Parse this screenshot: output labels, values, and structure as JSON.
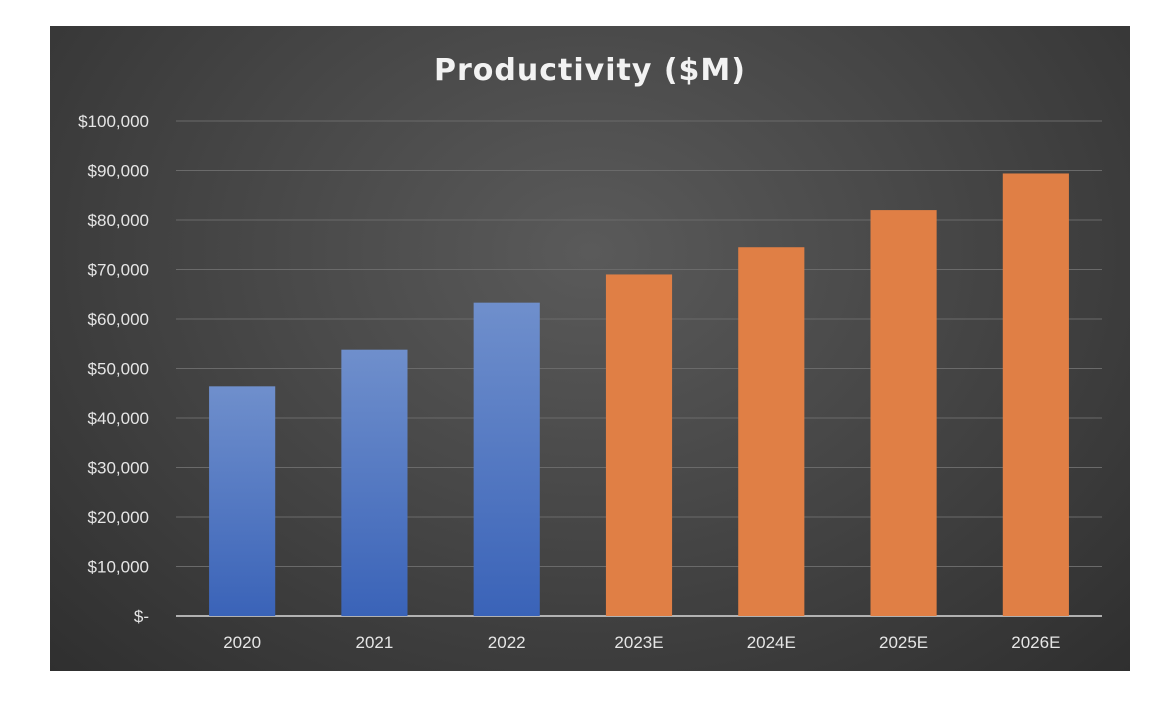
{
  "chart_data": {
    "type": "bar",
    "title": "Productivity ($M)",
    "xlabel": "",
    "ylabel": "",
    "categories": [
      "2020",
      "2021",
      "2022",
      "2023E",
      "2024E",
      "2025E",
      "2026E"
    ],
    "values": [
      46400,
      53800,
      63300,
      69000,
      74500,
      82000,
      89400
    ],
    "ylim": [
      0,
      100000
    ],
    "yticks": [
      0,
      10000,
      20000,
      30000,
      40000,
      50000,
      60000,
      70000,
      80000,
      90000,
      100000
    ],
    "ytick_labels": [
      "$-",
      "$10,000",
      "$20,000",
      "$30,000",
      "$40,000",
      "$50,000",
      "$60,000",
      "$70,000",
      "$80,000",
      "$90,000",
      "$100,000"
    ],
    "grid": true,
    "legend": "none",
    "colors": {
      "actual": "#4472c4",
      "estimate": "#e07f45",
      "background": "#474747",
      "gridline": "#6a6a6a",
      "axis": "#d9d9d9"
    },
    "bar_color_groups": [
      "actual",
      "actual",
      "actual",
      "estimate",
      "estimate",
      "estimate",
      "estimate"
    ]
  }
}
